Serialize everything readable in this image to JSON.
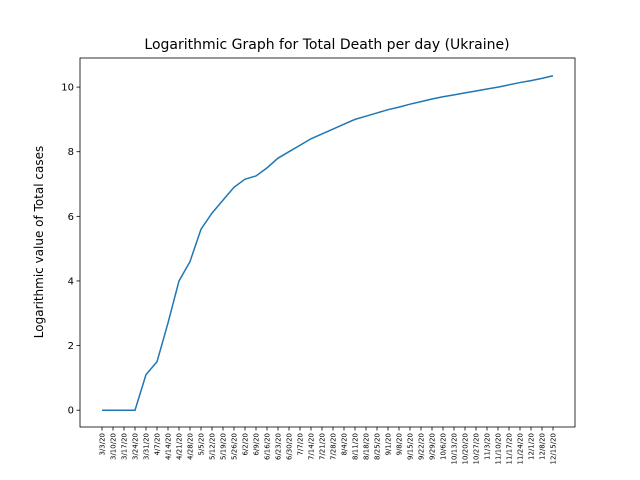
{
  "chart_data": {
    "type": "line",
    "title": "Logarithmic Graph for Total Death per day (Ukraine)",
    "y_label": "Logarithmic value of Total cases",
    "categories": [
      "3/3/20",
      "3/10/20",
      "3/17/20",
      "3/24/20",
      "3/31/20",
      "4/7/20",
      "4/14/20",
      "4/21/20",
      "4/28/20",
      "5/5/20",
      "5/12/20",
      "5/19/20",
      "5/26/20",
      "6/2/20",
      "6/9/20",
      "6/16/20",
      "6/23/20",
      "6/30/20",
      "7/7/20",
      "7/14/20",
      "7/21/20",
      "7/28/20",
      "8/4/20",
      "8/11/20",
      "8/18/20",
      "8/25/20",
      "9/1/20",
      "9/8/20",
      "9/15/20",
      "9/22/20",
      "9/29/20",
      "10/6/20",
      "10/13/20",
      "10/20/20",
      "10/27/20",
      "11/3/20",
      "11/10/20",
      "11/17/20",
      "11/24/20",
      "12/1/20",
      "12/8/20",
      "12/15/20"
    ],
    "values": [
      0,
      0,
      0,
      0,
      1.1,
      1.5,
      2.7,
      4.0,
      4.6,
      5.6,
      6.1,
      6.5,
      6.9,
      7.15,
      7.25,
      7.5,
      7.8,
      8.0,
      8.2,
      8.4,
      8.55,
      8.7,
      8.85,
      9.0,
      9.1,
      9.2,
      9.3,
      9.38,
      9.47,
      9.55,
      9.63,
      9.7,
      9.76,
      9.82,
      9.88,
      9.94,
      10.0,
      10.07,
      10.14,
      10.2,
      10.27,
      10.35
    ],
    "color": "#1f77b4",
    "ylim": [
      -0.52,
      10.9
    ],
    "yticks": [
      0,
      2,
      4,
      6,
      8,
      10
    ]
  }
}
